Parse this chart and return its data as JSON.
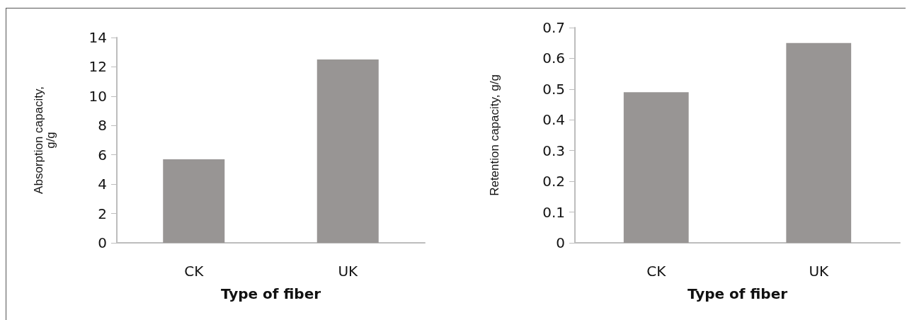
{
  "chart_data": [
    {
      "type": "bar",
      "categories": [
        "CK",
        "UK"
      ],
      "values": [
        5.7,
        12.5
      ],
      "color": "#989594",
      "xlabel": "Type of fiber",
      "ylabel": "Absorption capacity,\ng/g",
      "ylim": [
        0,
        14
      ],
      "yticks": [
        0,
        2,
        4,
        6,
        8,
        10,
        12,
        14
      ],
      "grid": false
    },
    {
      "type": "bar",
      "categories": [
        "CK",
        "UK"
      ],
      "values": [
        0.49,
        0.65
      ],
      "color": "#989594",
      "xlabel": "Type of fiber",
      "ylabel": "Retention capacity, g/g",
      "ylim": [
        0,
        0.7
      ],
      "yticks": [
        0,
        0.1,
        0.2,
        0.3,
        0.4,
        0.5,
        0.6,
        0.7
      ],
      "grid": false
    }
  ]
}
